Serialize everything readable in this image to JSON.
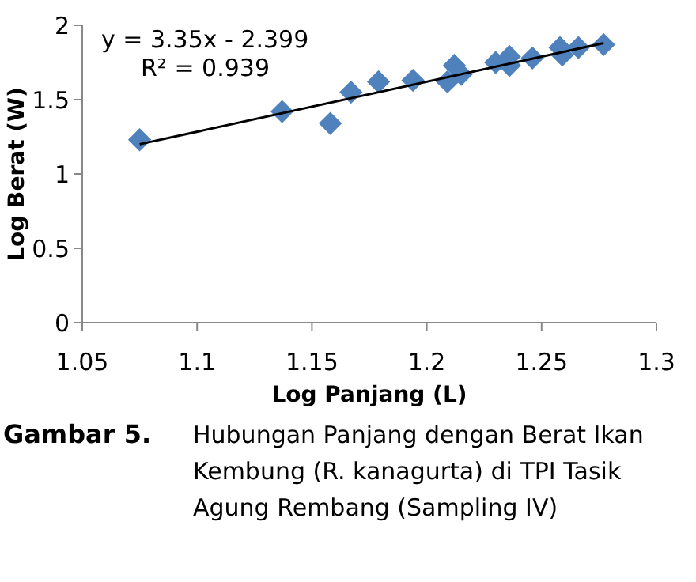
{
  "chart_data": {
    "type": "scatter",
    "xlabel": "Log Panjang (L)",
    "ylabel": "Log Berat (W)",
    "xlim": [
      1.05,
      1.3
    ],
    "xticks": [
      1.05,
      1.1,
      1.15,
      1.2,
      1.25,
      1.3
    ],
    "ylim": [
      0,
      2
    ],
    "yticks": [
      0,
      0.5,
      1,
      1.5,
      2
    ],
    "grid": false,
    "marker": "diamond",
    "series": [
      {
        "color": "#4f81bd",
        "x": [
          1.075,
          1.137,
          1.158,
          1.167,
          1.179,
          1.194,
          1.209,
          1.212,
          1.215,
          1.23,
          1.236,
          1.236,
          1.246,
          1.258,
          1.259,
          1.266,
          1.277
        ],
        "values": [
          1.23,
          1.42,
          1.34,
          1.55,
          1.62,
          1.63,
          1.62,
          1.73,
          1.67,
          1.75,
          1.79,
          1.73,
          1.78,
          1.85,
          1.8,
          1.85,
          1.87
        ]
      },
      {
        "type": "line",
        "color": "#000000",
        "marker": "none",
        "x": [
          1.075,
          1.277
        ],
        "values": [
          1.2,
          1.88
        ]
      }
    ],
    "annotations": [
      "y = 3.35x - 2.399",
      "R² = 0.939",
      "Gambar 5.",
      "Hubungan Panjang dengan Berat Ikan Kembung (R. kanagurta) di TPI Tasik Agung Rembang (Sampling IV)"
    ]
  }
}
